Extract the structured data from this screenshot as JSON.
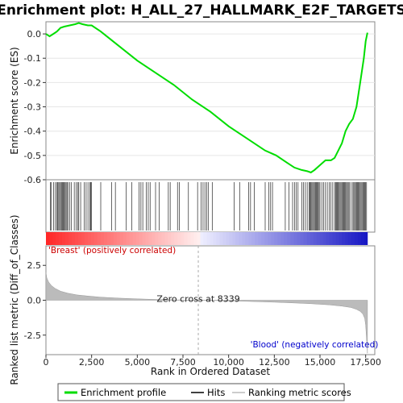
{
  "chart_data": {
    "type": "line",
    "title": "Enrichment plot: H_ALL_27_HALLMARK_E2F_TARGETS",
    "es_panel": {
      "ylabel": "Enrichment score (ES)",
      "ylim": [
        -0.6,
        0.05
      ],
      "yticks": [
        0.0,
        -0.1,
        -0.2,
        -0.3,
        -0.4,
        -0.5,
        -0.6
      ],
      "ytick_labels": [
        "0.0",
        "-0.1",
        "-0.2",
        "-0.3",
        "-0.4",
        "-0.5",
        "-0.6"
      ],
      "color": "#00dd00",
      "x": [
        0,
        200,
        400,
        600,
        800,
        1000,
        1300,
        1600,
        1800,
        2000,
        2300,
        2500,
        3000,
        4000,
        5000,
        6000,
        7000,
        8000,
        9000,
        10000,
        11000,
        12000,
        12600,
        13200,
        13600,
        14000,
        14300,
        14500,
        14700,
        15000,
        15300,
        15600,
        15800,
        16000,
        16200,
        16400,
        16600,
        16800,
        17000,
        17200,
        17400,
        17500,
        17600
      ],
      "y": [
        0.0,
        -0.01,
        0.0,
        0.01,
        0.025,
        0.03,
        0.035,
        0.04,
        0.045,
        0.04,
        0.035,
        0.035,
        0.01,
        -0.05,
        -0.11,
        -0.16,
        -0.21,
        -0.27,
        -0.32,
        -0.38,
        -0.43,
        -0.48,
        -0.5,
        -0.53,
        -0.55,
        -0.56,
        -0.565,
        -0.57,
        -0.56,
        -0.54,
        -0.52,
        -0.52,
        -0.51,
        -0.48,
        -0.45,
        -0.4,
        -0.37,
        -0.35,
        -0.3,
        -0.2,
        -0.1,
        -0.03,
        0.005
      ]
    },
    "hits": [
      250,
      300,
      420,
      520,
      600,
      650,
      700,
      750,
      800,
      850,
      900,
      950,
      1000,
      1050,
      1100,
      1150,
      1200,
      1300,
      1400,
      1550,
      1650,
      1750,
      1800,
      1900,
      2100,
      2200,
      2300,
      2400,
      2450,
      2500,
      3000,
      3600,
      3800,
      4400,
      4700,
      5100,
      5200,
      5300,
      5500,
      5600,
      5700,
      6000,
      6200,
      6700,
      6800,
      7200,
      7300,
      7800,
      8300,
      8500,
      8600,
      8700,
      8800,
      8900,
      9100,
      10300,
      10600,
      11100,
      11200,
      11400,
      12000,
      12200,
      12300,
      12400,
      13100,
      13300,
      13500,
      13600,
      13700,
      13800,
      14000,
      14100,
      14200,
      14300,
      14400,
      14450,
      14500,
      14550,
      14600,
      14650,
      14700,
      14750,
      14800,
      14850,
      14900,
      14950,
      15000,
      15100,
      15200,
      15300,
      15400,
      15500,
      15600,
      15700,
      15800,
      15850,
      15900,
      15950,
      16000,
      16050,
      16100,
      16150,
      16200,
      16250,
      16300,
      16350,
      16400,
      16450,
      16500,
      16550,
      16600,
      16700,
      16800,
      16850,
      16900,
      16950,
      17000,
      17050,
      17100,
      17150,
      17200,
      17250,
      17300,
      17350,
      17400,
      17450,
      17500,
      17550
    ],
    "metric_panel": {
      "ylabel": "Ranked list metric (Diff_of_Classes)",
      "ylim": [
        -3.9,
        3.9
      ],
      "yticks": [
        2.5,
        0.0,
        -2.5
      ],
      "ytick_labels": [
        "2.5",
        "0.0",
        "-2.5"
      ],
      "x": [
        0,
        50,
        150,
        300,
        500,
        800,
        1200,
        1700,
        2300,
        3000,
        4000,
        5000,
        6000,
        7000,
        8339,
        9500,
        10500,
        11500,
        12500,
        13500,
        14500,
        15500,
        16200,
        16700,
        17000,
        17200,
        17350,
        17450,
        17500,
        17550,
        17600
      ],
      "y": [
        2.0,
        1.6,
        1.3,
        1.05,
        0.85,
        0.65,
        0.5,
        0.38,
        0.3,
        0.22,
        0.15,
        0.1,
        0.06,
        0.03,
        0.0,
        -0.03,
        -0.06,
        -0.1,
        -0.14,
        -0.19,
        -0.25,
        -0.33,
        -0.42,
        -0.52,
        -0.65,
        -0.8,
        -1.0,
        -1.3,
        -1.8,
        -2.8,
        -3.8
      ]
    },
    "xlabel": "Rank in Ordered Dataset",
    "xlim": [
      0,
      18000
    ],
    "xticks": [
      0,
      2500,
      5000,
      7500,
      10000,
      12500,
      15000,
      17500
    ],
    "xtick_labels": [
      "0",
      "2,500",
      "5,000",
      "7,500",
      "10,000",
      "12,500",
      "15,000",
      "17,500"
    ],
    "zero_cross_label": "Zero cross at 8339",
    "zero_cross": 8339,
    "pos_label": "'Breast' (positively correlated)",
    "neg_label": "'Blood' (negatively correlated)",
    "pos_color": "#cc0000",
    "neg_color": "#0000cc"
  },
  "legend": {
    "items": [
      {
        "label": "Enrichment profile",
        "color": "#00dd00"
      },
      {
        "label": "Hits",
        "color": "#000000"
      },
      {
        "label": "Ranking metric scores",
        "color": "#bbbbbb"
      }
    ]
  }
}
